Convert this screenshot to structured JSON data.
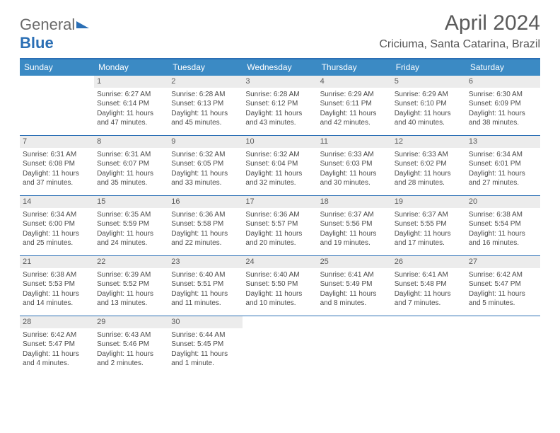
{
  "brand": {
    "part1": "General",
    "part2": "Blue"
  },
  "title": "April 2024",
  "location": "Criciuma, Santa Catarina, Brazil",
  "colors": {
    "header_accent": "#2b6fb5",
    "header_bg": "#3b8ac4",
    "daynum_bg": "#ececec",
    "text": "#4a4a4a"
  },
  "dayNames": [
    "Sunday",
    "Monday",
    "Tuesday",
    "Wednesday",
    "Thursday",
    "Friday",
    "Saturday"
  ],
  "weeks": [
    [
      null,
      {
        "n": "1",
        "sr": "Sunrise: 6:27 AM",
        "ss": "Sunset: 6:14 PM",
        "d1": "Daylight: 11 hours",
        "d2": "and 47 minutes."
      },
      {
        "n": "2",
        "sr": "Sunrise: 6:28 AM",
        "ss": "Sunset: 6:13 PM",
        "d1": "Daylight: 11 hours",
        "d2": "and 45 minutes."
      },
      {
        "n": "3",
        "sr": "Sunrise: 6:28 AM",
        "ss": "Sunset: 6:12 PM",
        "d1": "Daylight: 11 hours",
        "d2": "and 43 minutes."
      },
      {
        "n": "4",
        "sr": "Sunrise: 6:29 AM",
        "ss": "Sunset: 6:11 PM",
        "d1": "Daylight: 11 hours",
        "d2": "and 42 minutes."
      },
      {
        "n": "5",
        "sr": "Sunrise: 6:29 AM",
        "ss": "Sunset: 6:10 PM",
        "d1": "Daylight: 11 hours",
        "d2": "and 40 minutes."
      },
      {
        "n": "6",
        "sr": "Sunrise: 6:30 AM",
        "ss": "Sunset: 6:09 PM",
        "d1": "Daylight: 11 hours",
        "d2": "and 38 minutes."
      }
    ],
    [
      {
        "n": "7",
        "sr": "Sunrise: 6:31 AM",
        "ss": "Sunset: 6:08 PM",
        "d1": "Daylight: 11 hours",
        "d2": "and 37 minutes."
      },
      {
        "n": "8",
        "sr": "Sunrise: 6:31 AM",
        "ss": "Sunset: 6:07 PM",
        "d1": "Daylight: 11 hours",
        "d2": "and 35 minutes."
      },
      {
        "n": "9",
        "sr": "Sunrise: 6:32 AM",
        "ss": "Sunset: 6:05 PM",
        "d1": "Daylight: 11 hours",
        "d2": "and 33 minutes."
      },
      {
        "n": "10",
        "sr": "Sunrise: 6:32 AM",
        "ss": "Sunset: 6:04 PM",
        "d1": "Daylight: 11 hours",
        "d2": "and 32 minutes."
      },
      {
        "n": "11",
        "sr": "Sunrise: 6:33 AM",
        "ss": "Sunset: 6:03 PM",
        "d1": "Daylight: 11 hours",
        "d2": "and 30 minutes."
      },
      {
        "n": "12",
        "sr": "Sunrise: 6:33 AM",
        "ss": "Sunset: 6:02 PM",
        "d1": "Daylight: 11 hours",
        "d2": "and 28 minutes."
      },
      {
        "n": "13",
        "sr": "Sunrise: 6:34 AM",
        "ss": "Sunset: 6:01 PM",
        "d1": "Daylight: 11 hours",
        "d2": "and 27 minutes."
      }
    ],
    [
      {
        "n": "14",
        "sr": "Sunrise: 6:34 AM",
        "ss": "Sunset: 6:00 PM",
        "d1": "Daylight: 11 hours",
        "d2": "and 25 minutes."
      },
      {
        "n": "15",
        "sr": "Sunrise: 6:35 AM",
        "ss": "Sunset: 5:59 PM",
        "d1": "Daylight: 11 hours",
        "d2": "and 24 minutes."
      },
      {
        "n": "16",
        "sr": "Sunrise: 6:36 AM",
        "ss": "Sunset: 5:58 PM",
        "d1": "Daylight: 11 hours",
        "d2": "and 22 minutes."
      },
      {
        "n": "17",
        "sr": "Sunrise: 6:36 AM",
        "ss": "Sunset: 5:57 PM",
        "d1": "Daylight: 11 hours",
        "d2": "and 20 minutes."
      },
      {
        "n": "18",
        "sr": "Sunrise: 6:37 AM",
        "ss": "Sunset: 5:56 PM",
        "d1": "Daylight: 11 hours",
        "d2": "and 19 minutes."
      },
      {
        "n": "19",
        "sr": "Sunrise: 6:37 AM",
        "ss": "Sunset: 5:55 PM",
        "d1": "Daylight: 11 hours",
        "d2": "and 17 minutes."
      },
      {
        "n": "20",
        "sr": "Sunrise: 6:38 AM",
        "ss": "Sunset: 5:54 PM",
        "d1": "Daylight: 11 hours",
        "d2": "and 16 minutes."
      }
    ],
    [
      {
        "n": "21",
        "sr": "Sunrise: 6:38 AM",
        "ss": "Sunset: 5:53 PM",
        "d1": "Daylight: 11 hours",
        "d2": "and 14 minutes."
      },
      {
        "n": "22",
        "sr": "Sunrise: 6:39 AM",
        "ss": "Sunset: 5:52 PM",
        "d1": "Daylight: 11 hours",
        "d2": "and 13 minutes."
      },
      {
        "n": "23",
        "sr": "Sunrise: 6:40 AM",
        "ss": "Sunset: 5:51 PM",
        "d1": "Daylight: 11 hours",
        "d2": "and 11 minutes."
      },
      {
        "n": "24",
        "sr": "Sunrise: 6:40 AM",
        "ss": "Sunset: 5:50 PM",
        "d1": "Daylight: 11 hours",
        "d2": "and 10 minutes."
      },
      {
        "n": "25",
        "sr": "Sunrise: 6:41 AM",
        "ss": "Sunset: 5:49 PM",
        "d1": "Daylight: 11 hours",
        "d2": "and 8 minutes."
      },
      {
        "n": "26",
        "sr": "Sunrise: 6:41 AM",
        "ss": "Sunset: 5:48 PM",
        "d1": "Daylight: 11 hours",
        "d2": "and 7 minutes."
      },
      {
        "n": "27",
        "sr": "Sunrise: 6:42 AM",
        "ss": "Sunset: 5:47 PM",
        "d1": "Daylight: 11 hours",
        "d2": "and 5 minutes."
      }
    ],
    [
      {
        "n": "28",
        "sr": "Sunrise: 6:42 AM",
        "ss": "Sunset: 5:47 PM",
        "d1": "Daylight: 11 hours",
        "d2": "and 4 minutes."
      },
      {
        "n": "29",
        "sr": "Sunrise: 6:43 AM",
        "ss": "Sunset: 5:46 PM",
        "d1": "Daylight: 11 hours",
        "d2": "and 2 minutes."
      },
      {
        "n": "30",
        "sr": "Sunrise: 6:44 AM",
        "ss": "Sunset: 5:45 PM",
        "d1": "Daylight: 11 hours",
        "d2": "and 1 minute."
      },
      null,
      null,
      null,
      null
    ]
  ]
}
